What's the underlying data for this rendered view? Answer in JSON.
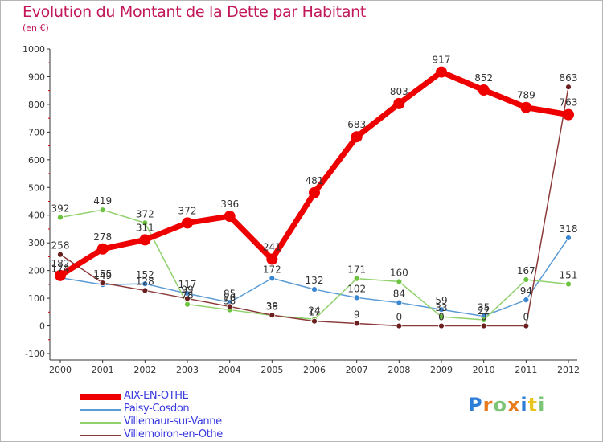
{
  "title": "Evolution du Montant de la Dette par Habitant",
  "subtitle": "(en €)",
  "logo_text": "Proxiti",
  "colors": {
    "title": "#c2185b",
    "axis": "#333333",
    "legend_text": "#3a3adf",
    "grid_marks": "#cc0000",
    "logo": [
      "#2e7dd7",
      "#e87a1c",
      "#7cc576",
      "#e87a1c",
      "#2e7dd7",
      "#e8c51c",
      "#7cc576"
    ]
  },
  "chart_data": {
    "type": "line",
    "title": "Evolution du Montant de la Dette par Habitant",
    "ylabel": "(en €)",
    "xlabel": "",
    "x": [
      "2000",
      "2001",
      "2002",
      "2003",
      "2004",
      "2005",
      "2006",
      "2007",
      "2008",
      "2009",
      "2010",
      "2011",
      "2012"
    ],
    "ylim": [
      -100,
      1000
    ],
    "yticks": [
      -100,
      0,
      100,
      200,
      300,
      400,
      500,
      600,
      700,
      800,
      900,
      1000
    ],
    "grid": false,
    "legend_position": "bottom-left",
    "series": [
      {
        "name": "AIX-EN-OTHE",
        "color": "#ee0000",
        "marker_fill": "#ee0000",
        "width": 7,
        "marker_r": 7,
        "values": [
          182,
          278,
          311,
          372,
          396,
          241,
          481,
          683,
          803,
          917,
          852,
          789,
          763
        ],
        "labels": [
          "182",
          "278",
          "311",
          "372",
          "396",
          "241",
          "481",
          "683",
          "803",
          "917",
          "852",
          "789",
          "763"
        ]
      },
      {
        "name": "Paisy-Cosdon",
        "color": "#5b9bd5",
        "marker_fill": "#3a86d0",
        "width": 1.5,
        "marker_r": 3.5,
        "values": [
          174,
          149,
          152,
          117,
          85,
          172,
          132,
          102,
          84,
          59,
          35,
          94,
          318
        ],
        "labels": [
          "174",
          "149",
          "152",
          "117",
          "85",
          "172",
          "132",
          "102",
          "84",
          "59",
          "35",
          "94",
          "318"
        ]
      },
      {
        "name": "Villemaur-sur-Vanne",
        "color": "#8fd16b",
        "marker_fill": "#6cc33f",
        "width": 1.5,
        "marker_r": 3.5,
        "values": [
          392,
          419,
          372,
          78,
          58,
          38,
          24,
          171,
          160,
          33,
          22,
          167,
          151
        ],
        "labels": [
          "392",
          "419",
          "372",
          "78",
          "58",
          "38",
          "24",
          "171",
          "160",
          "33",
          "22",
          "167",
          "151"
        ]
      },
      {
        "name": "Villemoiron-en-Othe",
        "color": "#8b3a3a",
        "marker_fill": "#6b1e1e",
        "width": 1.5,
        "marker_r": 3.5,
        "values": [
          258,
          155,
          128,
          99,
          70,
          39,
          17,
          9,
          0,
          0,
          0,
          0,
          863
        ],
        "labels": [
          "258",
          "155",
          "128",
          "99",
          "70",
          "39",
          "17",
          "9",
          "0",
          "0",
          "0",
          "0",
          "863"
        ]
      }
    ]
  }
}
